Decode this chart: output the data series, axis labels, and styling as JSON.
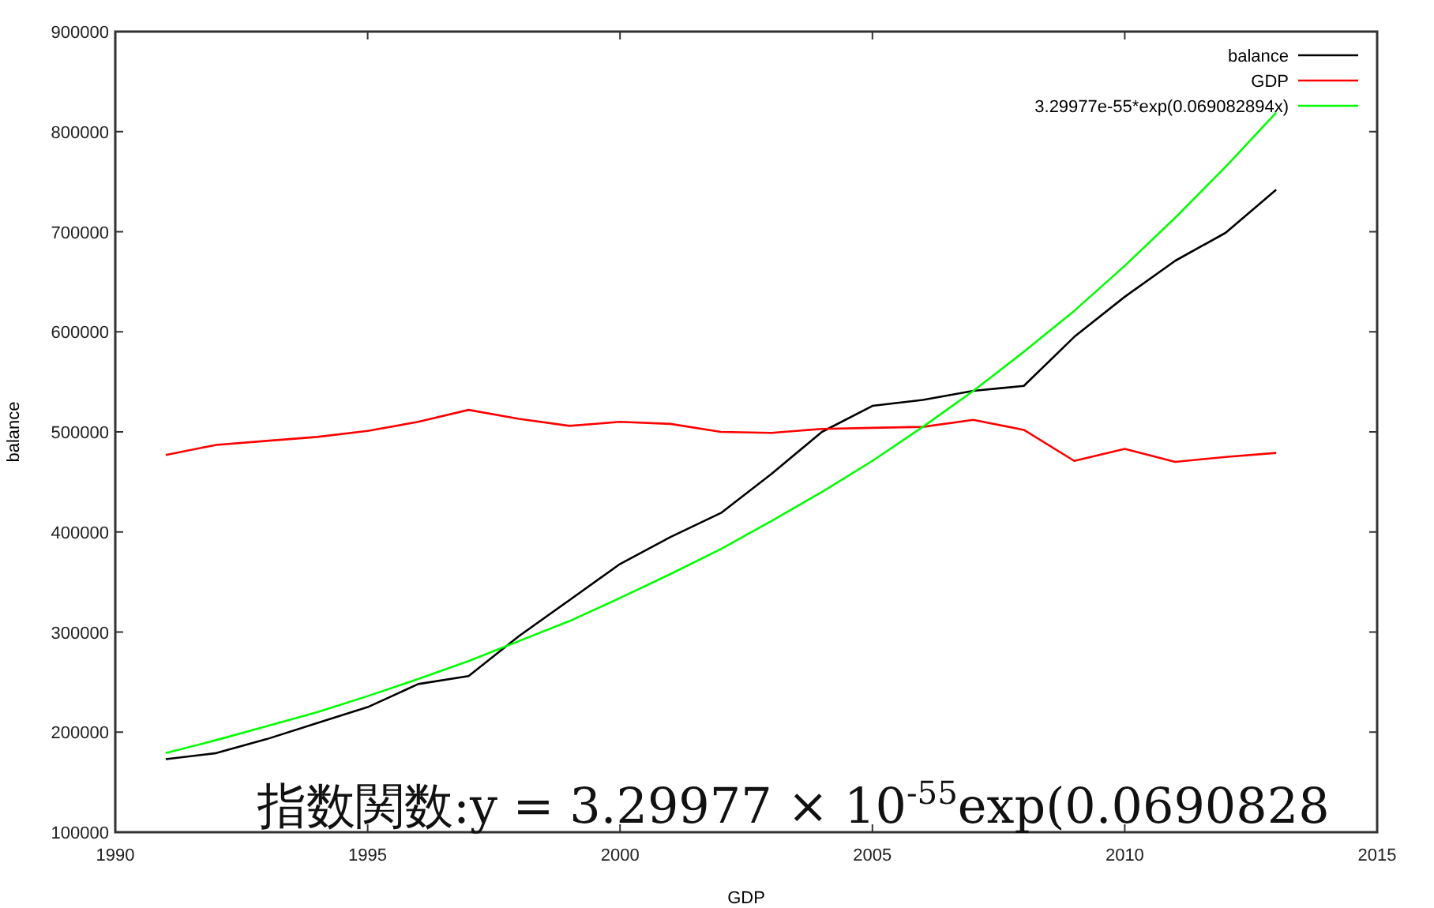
{
  "chart_data": {
    "type": "line",
    "xlabel": "GDP",
    "ylabel": "balance",
    "x": [
      1991,
      1992,
      1993,
      1994,
      1995,
      1996,
      1997,
      1998,
      1999,
      2000,
      2001,
      2002,
      2003,
      2004,
      2005,
      2006,
      2007,
      2008,
      2009,
      2010,
      2011,
      2012,
      2013
    ],
    "series": [
      {
        "name": "balance",
        "color": "#000000",
        "values": [
          173000,
          179000,
          193000,
          209000,
          225000,
          248000,
          256000,
          296000,
          332000,
          368000,
          395000,
          419000,
          458000,
          500000,
          526000,
          532000,
          541000,
          546000,
          595000,
          635000,
          671000,
          699000,
          742000
        ]
      },
      {
        "name": "GDP",
        "color": "#ff0000",
        "values": [
          477000,
          487000,
          491000,
          495000,
          501000,
          510000,
          522000,
          513000,
          506000,
          510000,
          508000,
          500000,
          499000,
          503000,
          504000,
          505000,
          512000,
          502000,
          471000,
          483000,
          470000,
          475000,
          479000
        ]
      },
      {
        "name": "3.29977e-55*exp(0.069082894x)",
        "color": "#00ff00",
        "values": [
          179000,
          192000,
          206000,
          220000,
          236000,
          253000,
          271000,
          291000,
          311000,
          334000,
          358000,
          383000,
          411000,
          440000,
          471000,
          505000,
          541000,
          580000,
          621000,
          666000,
          714000,
          765000,
          819000
        ]
      }
    ],
    "xlim": [
      1990,
      2015
    ],
    "xticks": [
      1990,
      1995,
      2000,
      2005,
      2010,
      2015
    ],
    "ylim": [
      100000,
      900000
    ],
    "yticks": [
      100000,
      200000,
      300000,
      400000,
      500000,
      600000,
      700000,
      800000,
      900000
    ],
    "legend": "top right",
    "line_style": "solid",
    "annotations": [
      "指数関数:y = 3.29977 × 10$^{-55}$exp(0.0690828"
    ]
  }
}
